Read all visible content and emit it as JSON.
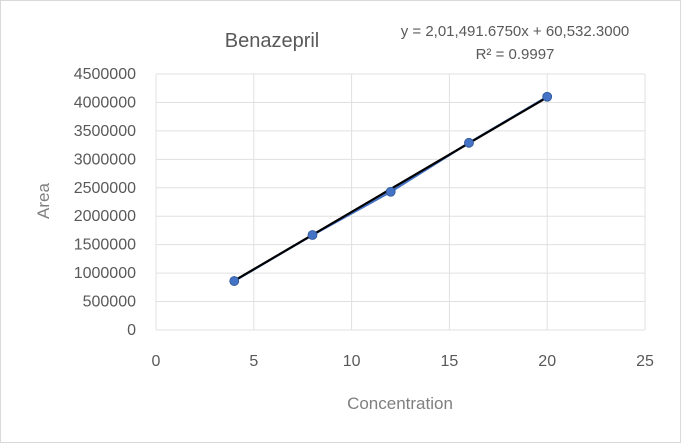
{
  "chart_data": {
    "type": "scatter",
    "title": "Benazepril",
    "xlabel": "Concentration",
    "ylabel": "Area",
    "xlim": [
      0,
      25
    ],
    "ylim": [
      0,
      4500000
    ],
    "x_ticks": [
      "0",
      "5",
      "10",
      "15",
      "20",
      "25"
    ],
    "y_ticks": [
      "0",
      "500000",
      "1000000",
      "1500000",
      "2000000",
      "2500000",
      "3000000",
      "3500000",
      "4000000",
      "4500000"
    ],
    "grid": true,
    "legend": "none",
    "series": [
      {
        "x": [
          4,
          8,
          12,
          16,
          20
        ],
        "y": [
          860000,
          1670000,
          2430000,
          3290000,
          4100000
        ],
        "marker_color": "#4472c4",
        "connector_color": "#4472c4"
      }
    ],
    "trendline": {
      "type": "linear",
      "slope": 201491.675,
      "intercept": 60532.3,
      "x_range": [
        4,
        20
      ],
      "color": "#000000",
      "equation_label": "y = 2,01,491.6750x + 60,532.3000",
      "r2_label": "R² = 0.9997"
    }
  }
}
